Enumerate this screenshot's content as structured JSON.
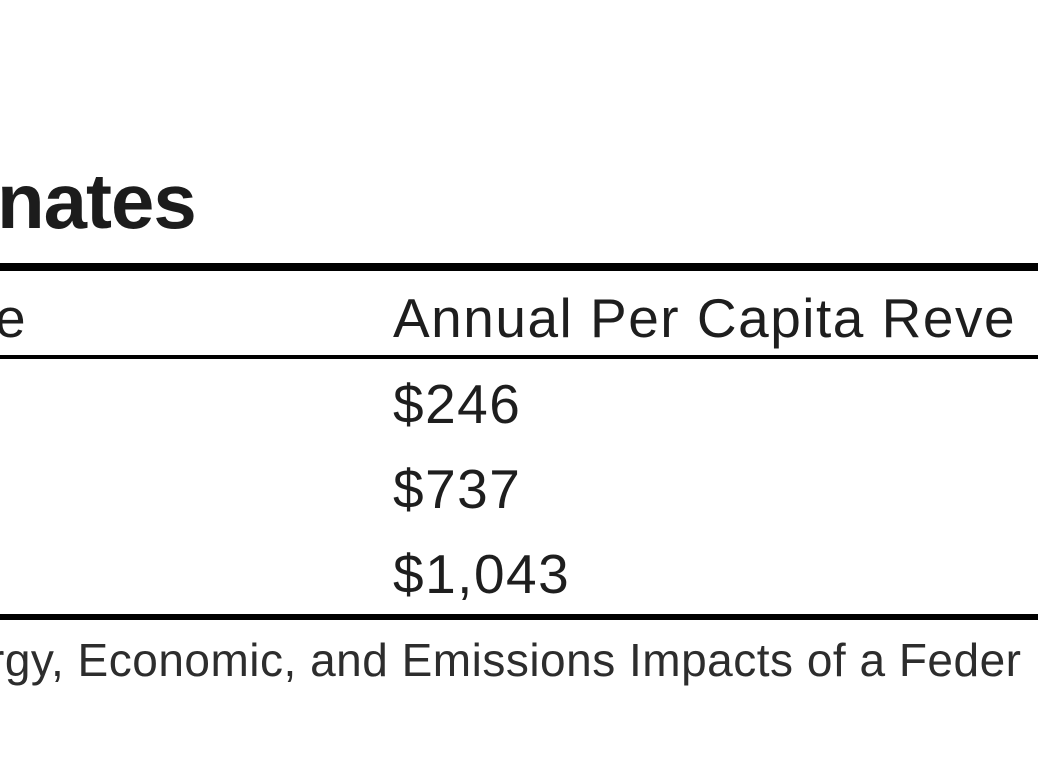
{
  "page": {
    "title_fragment": "nates",
    "background_color": "#ffffff",
    "text_color": "#1e1e1e",
    "rule_color": "#000000"
  },
  "table": {
    "header": {
      "col1_fragment": "e",
      "col2_fragment": "Annual Per Capita Reve"
    },
    "rows": [
      "$246",
      "$737",
      "$1,043"
    ]
  },
  "source_note": {
    "text_fragment": "rgy, Economic, and Emissions Impacts of a Feder"
  }
}
